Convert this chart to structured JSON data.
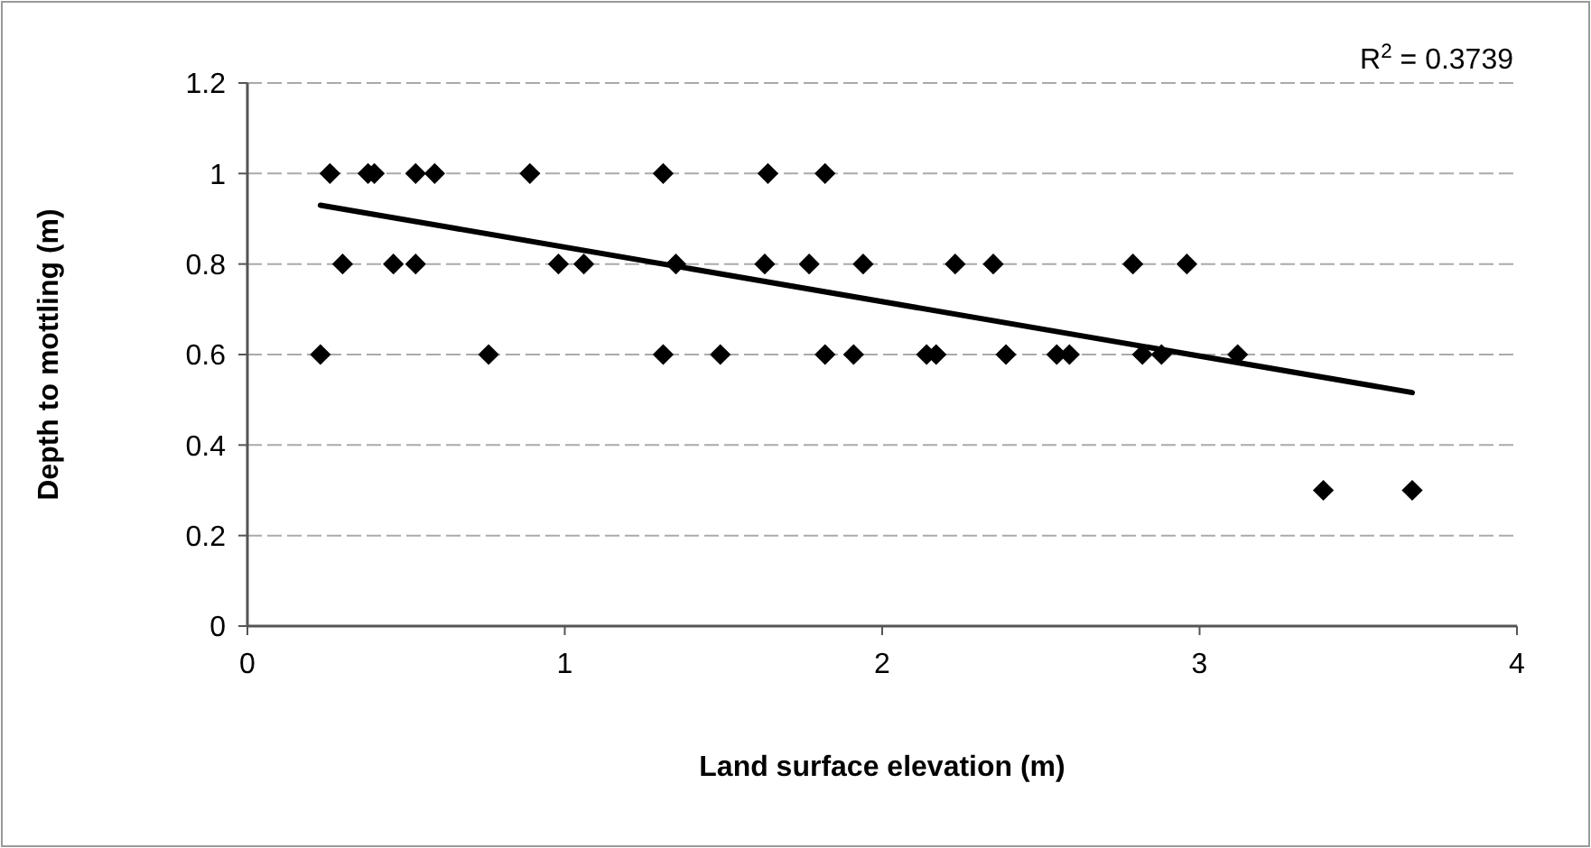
{
  "chart_data": {
    "type": "scatter",
    "xlabel": "Land surface elevation (m)",
    "ylabel": "Depth to mottling (m)",
    "annotations": [
      "R$^{2}$ = 0.3739"
    ],
    "xlim": [
      0,
      4
    ],
    "xticks": [
      0,
      1,
      2,
      3,
      4
    ],
    "ylim": [
      0,
      1.2
    ],
    "yticks": [
      0,
      0.2,
      0.4,
      0.6,
      0.8,
      1,
      1.2
    ],
    "grid": "y",
    "marker": "diamond",
    "series": [
      {
        "color": "#000000",
        "x": [
          0.26,
          0.38,
          0.4,
          0.53,
          0.59,
          0.89,
          1.31,
          1.64,
          1.82,
          0.3,
          0.46,
          0.53,
          0.98,
          1.06,
          1.35,
          1.63,
          1.77,
          1.94,
          2.23,
          2.35,
          2.79,
          2.96,
          0.23,
          0.76,
          1.31,
          1.49,
          1.82,
          1.91,
          2.14,
          2.17,
          2.39,
          2.55,
          2.59,
          2.82,
          2.88,
          3.12,
          3.39,
          3.67
        ],
        "values": [
          1,
          1,
          1,
          1,
          1,
          1,
          1,
          1,
          1,
          0.8,
          0.8,
          0.8,
          0.8,
          0.8,
          0.8,
          0.8,
          0.8,
          0.8,
          0.8,
          0.8,
          0.8,
          0.8,
          0.6,
          0.6,
          0.6,
          0.6,
          0.6,
          0.6,
          0.6,
          0.6,
          0.6,
          0.6,
          0.6,
          0.6,
          0.6,
          0.6,
          0.3,
          0.3
        ]
      },
      {
        "type": "line",
        "color": "#000000",
        "marker": "none",
        "line_style": "solid",
        "x": [
          0.23,
          3.67
        ],
        "values": [
          0.93,
          0.516
        ]
      }
    ]
  }
}
